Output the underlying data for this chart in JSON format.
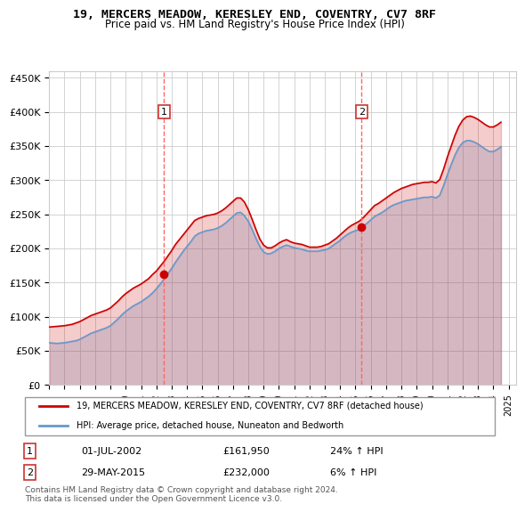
{
  "title": "19, MERCERS MEADOW, KERESLEY END, COVENTRY, CV7 8RF",
  "subtitle": "Price paid vs. HM Land Registry's House Price Index (HPI)",
  "ylabel_ticks": [
    "£0",
    "£50K",
    "£100K",
    "£150K",
    "£200K",
    "£250K",
    "£300K",
    "£350K",
    "£400K",
    "£450K"
  ],
  "ytick_values": [
    0,
    50000,
    100000,
    150000,
    200000,
    250000,
    300000,
    350000,
    400000,
    450000
  ],
  "ylim": [
    0,
    460000
  ],
  "xlim_start": 1995.0,
  "xlim_end": 2025.5,
  "transaction1": {
    "date_x": 2002.5,
    "price": 161950,
    "label": "1",
    "date_str": "01-JUL-2002",
    "price_str": "£161,950",
    "hpi_str": "24% ↑ HPI"
  },
  "transaction2": {
    "date_x": 2015.4,
    "price": 232000,
    "label": "2",
    "date_str": "29-MAY-2015",
    "price_str": "£232,000",
    "hpi_str": "6% ↑ HPI"
  },
  "red_line_color": "#cc0000",
  "blue_line_color": "#6699cc",
  "vline_color": "#ff6666",
  "grid_color": "#cccccc",
  "background_color": "#ffffff",
  "legend_label_red": "19, MERCERS MEADOW, KERESLEY END, COVENTRY, CV7 8RF (detached house)",
  "legend_label_blue": "HPI: Average price, detached house, Nuneaton and Bedworth",
  "footer": "Contains HM Land Registry data © Crown copyright and database right 2024.\nThis data is licensed under the Open Government Licence v3.0.",
  "hpi_data": {
    "years": [
      1995.0,
      1995.25,
      1995.5,
      1995.75,
      1996.0,
      1996.25,
      1996.5,
      1996.75,
      1997.0,
      1997.25,
      1997.5,
      1997.75,
      1998.0,
      1998.25,
      1998.5,
      1998.75,
      1999.0,
      1999.25,
      1999.5,
      1999.75,
      2000.0,
      2000.25,
      2000.5,
      2000.75,
      2001.0,
      2001.25,
      2001.5,
      2001.75,
      2002.0,
      2002.25,
      2002.5,
      2002.75,
      2003.0,
      2003.25,
      2003.5,
      2003.75,
      2004.0,
      2004.25,
      2004.5,
      2004.75,
      2005.0,
      2005.25,
      2005.5,
      2005.75,
      2006.0,
      2006.25,
      2006.5,
      2006.75,
      2007.0,
      2007.25,
      2007.5,
      2007.75,
      2008.0,
      2008.25,
      2008.5,
      2008.75,
      2009.0,
      2009.25,
      2009.5,
      2009.75,
      2010.0,
      2010.25,
      2010.5,
      2010.75,
      2011.0,
      2011.25,
      2011.5,
      2011.75,
      2012.0,
      2012.25,
      2012.5,
      2012.75,
      2013.0,
      2013.25,
      2013.5,
      2013.75,
      2014.0,
      2014.25,
      2014.5,
      2014.75,
      2015.0,
      2015.25,
      2015.5,
      2015.75,
      2016.0,
      2016.25,
      2016.5,
      2016.75,
      2017.0,
      2017.25,
      2017.5,
      2017.75,
      2018.0,
      2018.25,
      2018.5,
      2018.75,
      2019.0,
      2019.25,
      2019.5,
      2019.75,
      2020.0,
      2020.25,
      2020.5,
      2020.75,
      2021.0,
      2021.25,
      2021.5,
      2021.75,
      2022.0,
      2022.25,
      2022.5,
      2022.75,
      2023.0,
      2023.25,
      2023.5,
      2023.75,
      2024.0,
      2024.25,
      2024.5
    ],
    "values": [
      62000,
      61500,
      61000,
      61500,
      62000,
      63000,
      64000,
      65000,
      67000,
      70000,
      73000,
      76000,
      78000,
      80000,
      82000,
      84000,
      87000,
      92000,
      97000,
      103000,
      108000,
      112000,
      116000,
      119000,
      122000,
      126000,
      130000,
      135000,
      141000,
      148000,
      155000,
      163000,
      171000,
      180000,
      188000,
      196000,
      203000,
      210000,
      218000,
      222000,
      224000,
      226000,
      227000,
      228000,
      230000,
      233000,
      237000,
      242000,
      247000,
      252000,
      253000,
      248000,
      240000,
      228000,
      215000,
      203000,
      195000,
      192000,
      193000,
      196000,
      200000,
      203000,
      205000,
      203000,
      201000,
      200000,
      199000,
      197000,
      196000,
      196000,
      196000,
      197000,
      198000,
      200000,
      204000,
      208000,
      212000,
      217000,
      221000,
      224000,
      226000,
      228000,
      232000,
      237000,
      242000,
      247000,
      250000,
      253000,
      257000,
      261000,
      264000,
      266000,
      268000,
      270000,
      271000,
      272000,
      273000,
      274000,
      275000,
      275000,
      276000,
      274000,
      278000,
      292000,
      308000,
      323000,
      337000,
      348000,
      355000,
      358000,
      358000,
      356000,
      353000,
      349000,
      345000,
      342000,
      342000,
      345000,
      349000
    ]
  },
  "price_data": {
    "years": [
      1995.0,
      1995.25,
      1995.5,
      1995.75,
      1996.0,
      1996.25,
      1996.5,
      1996.75,
      1997.0,
      1997.25,
      1997.5,
      1997.75,
      1998.0,
      1998.25,
      1998.5,
      1998.75,
      1999.0,
      1999.25,
      1999.5,
      1999.75,
      2000.0,
      2000.25,
      2000.5,
      2000.75,
      2001.0,
      2001.25,
      2001.5,
      2001.75,
      2002.0,
      2002.25,
      2002.5,
      2002.75,
      2003.0,
      2003.25,
      2003.5,
      2003.75,
      2004.0,
      2004.25,
      2004.5,
      2004.75,
      2005.0,
      2005.25,
      2005.5,
      2005.75,
      2006.0,
      2006.25,
      2006.5,
      2006.75,
      2007.0,
      2007.25,
      2007.5,
      2007.75,
      2008.0,
      2008.25,
      2008.5,
      2008.75,
      2009.0,
      2009.25,
      2009.5,
      2009.75,
      2010.0,
      2010.25,
      2010.5,
      2010.75,
      2011.0,
      2011.25,
      2011.5,
      2011.75,
      2012.0,
      2012.25,
      2012.5,
      2012.75,
      2013.0,
      2013.25,
      2013.5,
      2013.75,
      2014.0,
      2014.25,
      2014.5,
      2014.75,
      2015.0,
      2015.25,
      2015.5,
      2015.75,
      2016.0,
      2016.25,
      2016.5,
      2016.75,
      2017.0,
      2017.25,
      2017.5,
      2017.75,
      2018.0,
      2018.25,
      2018.5,
      2018.75,
      2019.0,
      2019.25,
      2019.5,
      2019.75,
      2020.0,
      2020.25,
      2020.5,
      2020.75,
      2021.0,
      2021.25,
      2021.5,
      2021.75,
      2022.0,
      2022.25,
      2022.5,
      2022.75,
      2023.0,
      2023.25,
      2023.5,
      2023.75,
      2024.0,
      2024.25,
      2024.5
    ],
    "values": [
      85000,
      85500,
      86000,
      86500,
      87000,
      88000,
      89000,
      91000,
      93000,
      96000,
      99000,
      102000,
      104000,
      106000,
      108000,
      110000,
      113000,
      118000,
      123000,
      129000,
      134000,
      138000,
      142000,
      145000,
      148000,
      152000,
      156000,
      162000,
      167000,
      174000,
      181000,
      189000,
      197000,
      206000,
      213000,
      220000,
      227000,
      234000,
      241000,
      244000,
      246000,
      248000,
      249000,
      250000,
      252000,
      255000,
      259000,
      264000,
      269000,
      274000,
      274000,
      268000,
      257000,
      243000,
      228000,
      214000,
      205000,
      201000,
      201000,
      204000,
      208000,
      211000,
      213000,
      210000,
      208000,
      207000,
      206000,
      204000,
      202000,
      202000,
      202000,
      203000,
      205000,
      207000,
      211000,
      215000,
      220000,
      225000,
      230000,
      234000,
      237000,
      240000,
      245000,
      251000,
      257000,
      263000,
      266000,
      270000,
      274000,
      278000,
      282000,
      285000,
      288000,
      290000,
      292000,
      294000,
      295000,
      296000,
      297000,
      297000,
      298000,
      296000,
      301000,
      316000,
      334000,
      350000,
      366000,
      379000,
      388000,
      393000,
      394000,
      392000,
      389000,
      385000,
      381000,
      378000,
      378000,
      381000,
      385000
    ]
  }
}
